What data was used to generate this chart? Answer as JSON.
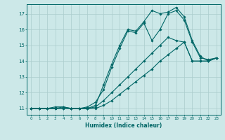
{
  "xlabel": "Humidex (Indice chaleur)",
  "background_color": "#cce8e8",
  "grid_color": "#aacccc",
  "line_color": "#006666",
  "xlim": [
    -0.5,
    23.5
  ],
  "ylim": [
    10.6,
    17.6
  ],
  "xticks": [
    0,
    1,
    2,
    3,
    4,
    5,
    6,
    7,
    8,
    9,
    10,
    11,
    12,
    13,
    14,
    15,
    16,
    17,
    18,
    19,
    20,
    21,
    22,
    23
  ],
  "yticks": [
    11,
    12,
    13,
    14,
    15,
    16,
    17
  ],
  "series": [
    {
      "x": [
        0,
        1,
        2,
        3,
        4,
        5,
        6,
        7,
        8,
        9,
        10,
        11,
        12,
        13,
        14,
        15,
        16,
        17,
        18,
        19,
        20,
        21,
        22,
        23
      ],
      "y": [
        11.0,
        11.0,
        11.0,
        11.1,
        11.1,
        11.0,
        11.0,
        11.0,
        11.2,
        12.5,
        13.8,
        15.0,
        16.0,
        15.9,
        16.5,
        17.2,
        17.0,
        17.1,
        17.4,
        16.8,
        15.3,
        14.3,
        14.0,
        14.2
      ]
    },
    {
      "x": [
        0,
        1,
        2,
        3,
        4,
        5,
        6,
        7,
        8,
        9,
        10,
        11,
        12,
        13,
        14,
        15,
        16,
        17,
        18,
        19,
        20,
        21,
        22,
        23
      ],
      "y": [
        11.0,
        11.0,
        11.0,
        11.0,
        11.1,
        11.0,
        11.0,
        11.1,
        11.4,
        12.2,
        13.6,
        14.8,
        15.9,
        15.8,
        16.4,
        15.3,
        16.0,
        17.0,
        17.2,
        16.6,
        15.2,
        14.2,
        14.1,
        14.2
      ]
    },
    {
      "x": [
        0,
        1,
        2,
        3,
        4,
        5,
        6,
        7,
        8,
        9,
        10,
        11,
        12,
        13,
        14,
        15,
        16,
        17,
        18,
        19,
        20,
        21,
        22,
        23
      ],
      "y": [
        11.0,
        11.0,
        11.0,
        11.0,
        11.0,
        11.0,
        11.0,
        11.0,
        11.1,
        11.5,
        12.0,
        12.5,
        13.0,
        13.5,
        14.0,
        14.5,
        15.0,
        15.5,
        15.3,
        15.2,
        14.0,
        14.0,
        14.0,
        14.2
      ]
    },
    {
      "x": [
        0,
        1,
        2,
        3,
        4,
        5,
        6,
        7,
        8,
        9,
        10,
        11,
        12,
        13,
        14,
        15,
        16,
        17,
        18,
        19,
        20,
        21,
        22,
        23
      ],
      "y": [
        11.0,
        11.0,
        11.0,
        11.0,
        11.0,
        11.0,
        11.0,
        11.0,
        11.0,
        11.2,
        11.5,
        11.9,
        12.3,
        12.7,
        13.1,
        13.5,
        14.0,
        14.4,
        14.8,
        15.2,
        14.0,
        14.0,
        14.0,
        14.2
      ]
    }
  ]
}
